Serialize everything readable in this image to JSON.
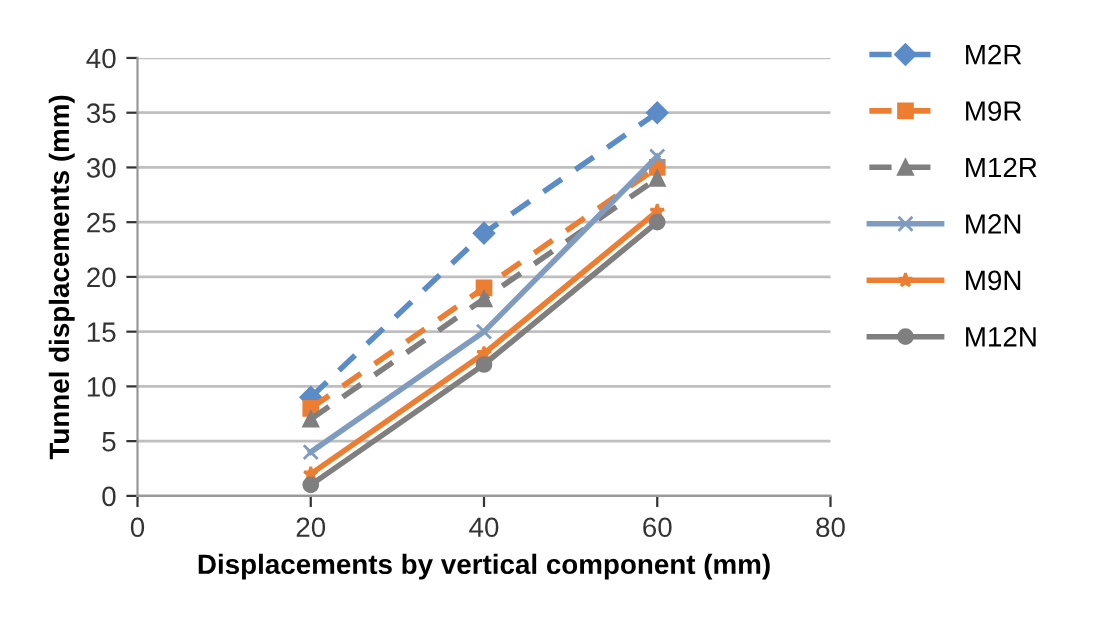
{
  "chart_data": {
    "type": "line",
    "xlabel": "Displacements by vertical component (mm)",
    "ylabel": "Tunnel displacements (mm)",
    "x": [
      20,
      40,
      60
    ],
    "xlim": [
      0,
      80
    ],
    "xticks": [
      0,
      20,
      40,
      60,
      80
    ],
    "ylim": [
      0,
      40
    ],
    "yticks": [
      0,
      5,
      10,
      15,
      20,
      25,
      30,
      35,
      40
    ],
    "grid": "y",
    "legend": "right",
    "series": [
      {
        "name": "M2R",
        "color": "#5b8cc7",
        "values": [
          9,
          24,
          35
        ],
        "marker": "diamond",
        "line_style": "dashed"
      },
      {
        "name": "M9R",
        "color": "#ed7d31",
        "values": [
          8,
          19,
          30
        ],
        "marker": "square",
        "line_style": "dashed"
      },
      {
        "name": "M12R",
        "color": "#7f7f7f",
        "values": [
          7,
          18,
          29
        ],
        "marker": "triangle",
        "line_style": "dashed"
      },
      {
        "name": "M2N",
        "color": "#7f9cc0",
        "values": [
          4,
          15,
          31
        ],
        "marker": "cross",
        "line_style": "solid"
      },
      {
        "name": "M9N",
        "color": "#ed7d31",
        "values": [
          2,
          13,
          26
        ],
        "marker": "star",
        "line_style": "solid"
      },
      {
        "name": "M12N",
        "color": "#7f7f7f",
        "values": [
          1,
          12,
          25
        ],
        "marker": "circle",
        "line_style": "solid"
      }
    ]
  }
}
